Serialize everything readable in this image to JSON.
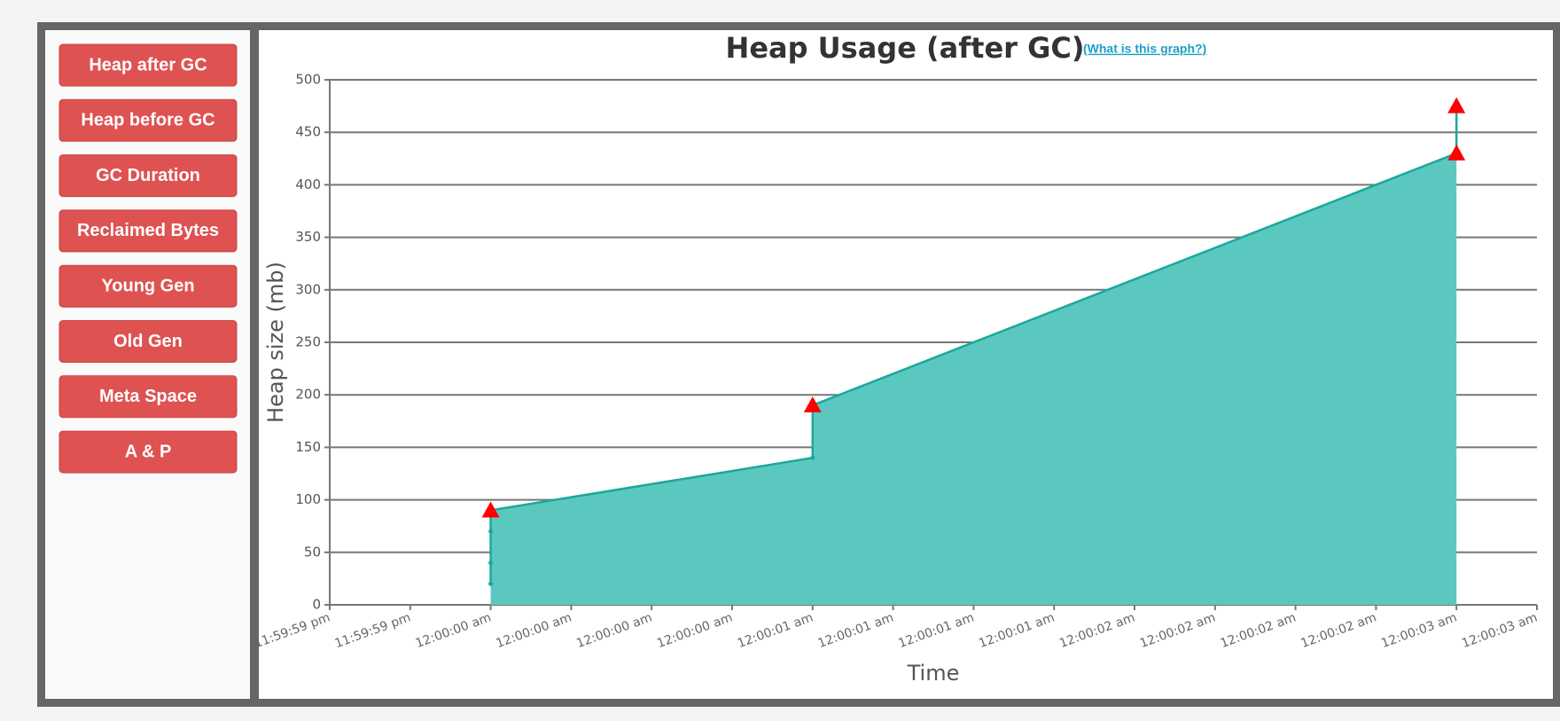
{
  "sidebar": {
    "buttons": [
      "Heap after GC",
      "Heap before GC",
      "GC Duration",
      "Reclaimed Bytes",
      "Young Gen",
      "Old Gen",
      "Meta Space",
      "A & P"
    ]
  },
  "link": "(What is this graph?)",
  "chart_data": {
    "type": "area",
    "title": "Heap Usage (after GC)",
    "x_label": "Time",
    "y_label": "Heap size (mb)",
    "series": [
      {
        "color": "#1aa89a",
        "fill": "#5bc8c0",
        "x": [
          0,
          0,
          0,
          0,
          1,
          1,
          3,
          3
        ],
        "values": [
          20,
          40,
          70,
          90,
          140,
          190,
          430,
          475
        ]
      },
      {
        "color": "#ff0000",
        "marker": "triangle",
        "x": [
          0,
          1,
          3,
          3
        ],
        "values": [
          90,
          190,
          430,
          475
        ]
      }
    ],
    "xlim": [
      -0.5,
      3.25
    ],
    "xticks": [
      {
        "value": -0.5,
        "label": "11:59:59 pm"
      },
      {
        "value": -0.25,
        "label": "11:59:59 pm"
      },
      {
        "value": 0,
        "label": "12:00:00 am"
      },
      {
        "value": 0.25,
        "label": "12:00:00 am"
      },
      {
        "value": 0.5,
        "label": "12:00:00 am"
      },
      {
        "value": 0.75,
        "label": "12:00:00 am"
      },
      {
        "value": 1,
        "label": "12:00:01 am"
      },
      {
        "value": 1.25,
        "label": "12:00:01 am"
      },
      {
        "value": 1.5,
        "label": "12:00:01 am"
      },
      {
        "value": 1.75,
        "label": "12:00:01 am"
      },
      {
        "value": 2,
        "label": "12:00:02 am"
      },
      {
        "value": 2.25,
        "label": "12:00:02 am"
      },
      {
        "value": 2.5,
        "label": "12:00:02 am"
      },
      {
        "value": 2.75,
        "label": "12:00:02 am"
      },
      {
        "value": 3,
        "label": "12:00:03 am"
      },
      {
        "value": 3.25,
        "label": "12:00:03 am"
      }
    ],
    "ylim": [
      0,
      500
    ],
    "yticks": [
      0,
      50,
      100,
      150,
      200,
      250,
      300,
      350,
      400,
      450,
      500
    ],
    "grid": true
  }
}
